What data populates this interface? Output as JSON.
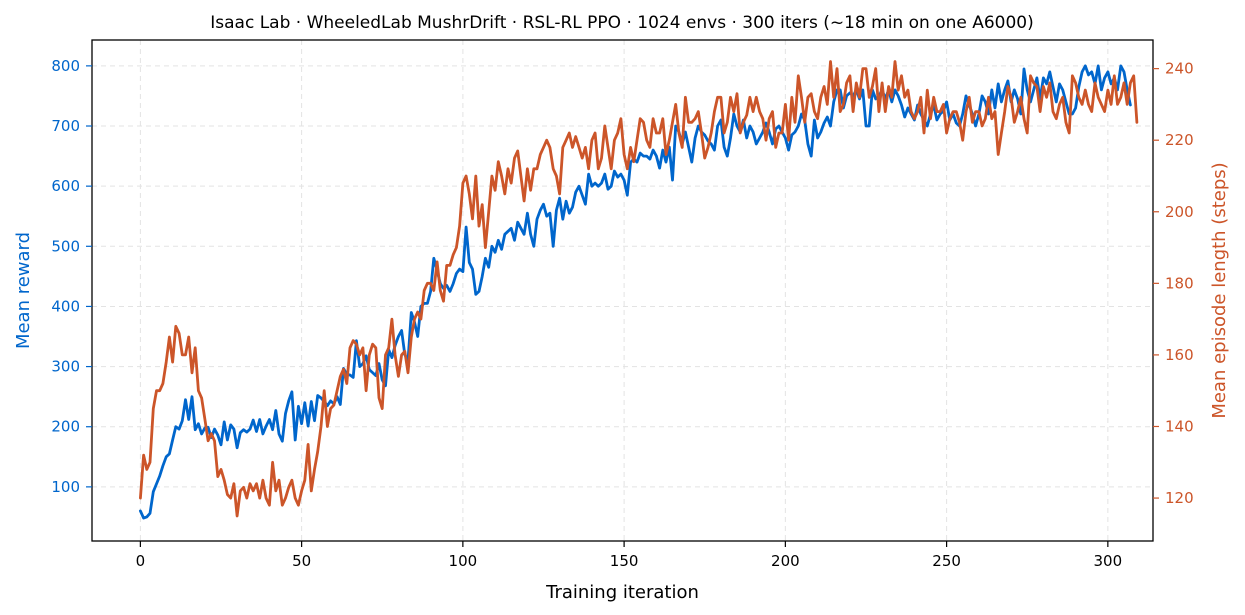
{
  "chart_data": {
    "type": "line",
    "title": "Isaac Lab · WheeledLab MushrDrift · RSL-RL PPO · 1024 envs · 300 iters (~18 min on one A6000)",
    "xlabel": "Training iteration",
    "ylabel_left": "Mean reward",
    "ylabel_right": "Mean episode length (steps)",
    "xlim": [
      -15,
      314
    ],
    "ylim_left": [
      10,
      843
    ],
    "ylim_right": [
      108,
      248
    ],
    "xticks": [
      0,
      50,
      100,
      150,
      200,
      250,
      300
    ],
    "yticks_left": [
      100,
      200,
      300,
      400,
      500,
      600,
      700,
      800
    ],
    "yticks_right": [
      120,
      140,
      160,
      180,
      200,
      220,
      240
    ],
    "grid": true,
    "colors": {
      "reward": "#0066cc",
      "length": "#cc5529"
    },
    "series_x_start": 0,
    "series_x_step": 1,
    "series": [
      {
        "axis": "left",
        "color": "#0066cc",
        "values": [
          60,
          48,
          50,
          56,
          92,
          105,
          118,
          135,
          150,
          155,
          178,
          200,
          196,
          210,
          245,
          212,
          250,
          195,
          205,
          188,
          198,
          199,
          182,
          196,
          186,
          170,
          208,
          178,
          203,
          196,
          165,
          190,
          195,
          191,
          196,
          211,
          192,
          212,
          188,
          201,
          212,
          195,
          227,
          188,
          176,
          222,
          243,
          258,
          178,
          234,
          205,
          240,
          201,
          242,
          210,
          252,
          248,
          242,
          235,
          243,
          238,
          250,
          237,
          297,
          287,
          286,
          282,
          343,
          300,
          305,
          318,
          295,
          290,
          285,
          305,
          278,
          268,
          328,
          315,
          335,
          350,
          360,
          320,
          310,
          390,
          374,
          350,
          400,
          405,
          405,
          425,
          480,
          460,
          438,
          430,
          435,
          425,
          438,
          455,
          462,
          458,
          532,
          473,
          462,
          420,
          425,
          450,
          480,
          465,
          500,
          490,
          510,
          495,
          520,
          525,
          530,
          510,
          540,
          530,
          520,
          555,
          520,
          500,
          545,
          560,
          570,
          550,
          555,
          500,
          560,
          580,
          545,
          575,
          555,
          565,
          590,
          600,
          585,
          570,
          620,
          600,
          605,
          600,
          605,
          620,
          595,
          600,
          625,
          615,
          620,
          610,
          585,
          640,
          645,
          640,
          655,
          650,
          650,
          645,
          660,
          650,
          630,
          660,
          640,
          665,
          610,
          700,
          690,
          670,
          690,
          665,
          640,
          680,
          700,
          690,
          685,
          675,
          670,
          660,
          700,
          710,
          665,
          650,
          680,
          720,
          700,
          690,
          710,
          680,
          700,
          690,
          670,
          680,
          690,
          705,
          690,
          670,
          695,
          700,
          690,
          680,
          660,
          685,
          690,
          700,
          720,
          710,
          670,
          650,
          710,
          680,
          690,
          705,
          715,
          700,
          740,
          760,
          760,
          730,
          750,
          755,
          750,
          760,
          745,
          760,
          700,
          700,
          760,
          745,
          750,
          760,
          745,
          760,
          740,
          760,
          750,
          735,
          715,
          730,
          720,
          710,
          735,
          720,
          710,
          700,
          720,
          735,
          710,
          720,
          725,
          740,
          710,
          720,
          705,
          700,
          720,
          750,
          735,
          720,
          700,
          720,
          750,
          740,
          720,
          760,
          730,
          770,
          740,
          760,
          775,
          740,
          760,
          745,
          720,
          795,
          760,
          740,
          760,
          780,
          745,
          780,
          770,
          790,
          765,
          740,
          770,
          760,
          740,
          720,
          720,
          730,
          765,
          790,
          800,
          785,
          790,
          770,
          800,
          760,
          780,
          790,
          770,
          780,
          760,
          800,
          790,
          760,
          735
        ]
      },
      {
        "axis": "right",
        "color": "#cc5529",
        "values": [
          120,
          132,
          128,
          130,
          145,
          150,
          150,
          152,
          158,
          165,
          158,
          168,
          166,
          160,
          160,
          165,
          155,
          162,
          150,
          148,
          142,
          136,
          138,
          136,
          126,
          128,
          125,
          121,
          120,
          124,
          115,
          122,
          123,
          120,
          124,
          122,
          124,
          120,
          125,
          120,
          118,
          130,
          122,
          125,
          118,
          120,
          123,
          125,
          120,
          118,
          122,
          125,
          135,
          122,
          128,
          133,
          140,
          150,
          140,
          145,
          146,
          150,
          154,
          156,
          152,
          162,
          164,
          163,
          160,
          162,
          150,
          160,
          163,
          162,
          148,
          145,
          160,
          162,
          170,
          160,
          154,
          160,
          161,
          155,
          165,
          170,
          172,
          170,
          178,
          180,
          180,
          178,
          186,
          178,
          175,
          185,
          185,
          188,
          190,
          196,
          208,
          210,
          205,
          198,
          210,
          196,
          202,
          190,
          200,
          210,
          206,
          214,
          210,
          205,
          212,
          208,
          215,
          217,
          210,
          203,
          212,
          206,
          212,
          212,
          216,
          218,
          220,
          218,
          212,
          210,
          205,
          218,
          220,
          222,
          218,
          221,
          218,
          215,
          218,
          212,
          220,
          222,
          212,
          215,
          224,
          218,
          212,
          220,
          222,
          226,
          216,
          212,
          218,
          214,
          220,
          226,
          225,
          220,
          218,
          226,
          222,
          222,
          226,
          216,
          220,
          225,
          230,
          222,
          218,
          232,
          225,
          225,
          226,
          228,
          222,
          215,
          218,
          222,
          228,
          232,
          232,
          222,
          225,
          232,
          228,
          233,
          222,
          225,
          227,
          232,
          228,
          232,
          228,
          226,
          220,
          226,
          228,
          218,
          222,
          222,
          230,
          220,
          232,
          225,
          238,
          232,
          225,
          232,
          233,
          228,
          226,
          232,
          235,
          230,
          242,
          232,
          240,
          228,
          230,
          236,
          238,
          228,
          236,
          232,
          240,
          240,
          232,
          235,
          240,
          228,
          236,
          228,
          235,
          232,
          242,
          234,
          238,
          232,
          234,
          228,
          226,
          228,
          232,
          222,
          234,
          226,
          232,
          228,
          228,
          230,
          222,
          226,
          228,
          228,
          225,
          220,
          228,
          232,
          225,
          228,
          228,
          224,
          226,
          232,
          226,
          228,
          216,
          222,
          228,
          235,
          232,
          225,
          228,
          232,
          226,
          222,
          238,
          236,
          235,
          228,
          235,
          232,
          236,
          228,
          226,
          230,
          232,
          225,
          222,
          238,
          236,
          232,
          230,
          234,
          230,
          228,
          236,
          232,
          230,
          228,
          234,
          230,
          238,
          230,
          232,
          236,
          230,
          236,
          238,
          225
        ]
      }
    ]
  }
}
